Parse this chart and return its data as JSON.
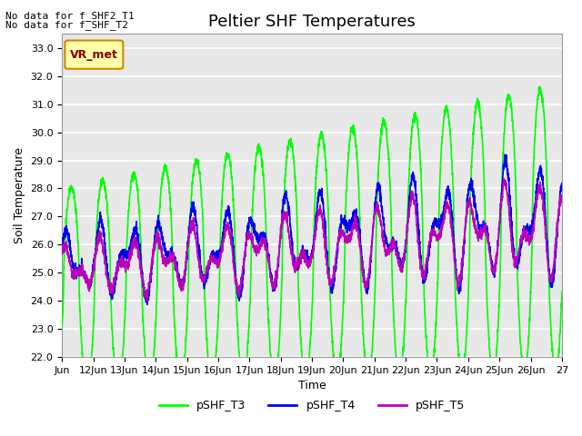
{
  "title": "Peltier SHF Temperatures",
  "xlabel": "Time",
  "ylabel": "Soil Temperature",
  "ylim": [
    22.0,
    33.5
  ],
  "yticks": [
    22.0,
    23.0,
    24.0,
    25.0,
    26.0,
    27.0,
    28.0,
    29.0,
    30.0,
    31.0,
    32.0,
    33.0
  ],
  "x_start": 11.0,
  "x_end": 27.0,
  "xtick_labels": [
    "Jun",
    "12Jun",
    "13Jun",
    "14Jun",
    "15Jun",
    "16Jun",
    "17Jun",
    "18Jun",
    "19Jun",
    "20Jun",
    "21Jun",
    "22Jun",
    "23Jun",
    "24Jun",
    "25Jun",
    "26Jun",
    "27"
  ],
  "xtick_positions": [
    11.0,
    12.0,
    13.0,
    14.0,
    15.0,
    16.0,
    17.0,
    18.0,
    19.0,
    20.0,
    21.0,
    22.0,
    23.0,
    24.0,
    25.0,
    26.0,
    27.0
  ],
  "series": {
    "pSHF_T3": {
      "color": "#00FF00",
      "linewidth": 1.2
    },
    "pSHF_T4": {
      "color": "#0000EE",
      "linewidth": 1.2
    },
    "pSHF_T5": {
      "color": "#BB00BB",
      "linewidth": 1.2
    }
  },
  "annotations": [
    "No data for f_SHF2_T1",
    "No data for f_SHF_T2"
  ],
  "legend_label": "VR_met",
  "legend_bg": "#FFFFAA",
  "legend_border": "#CC8800",
  "legend_text_color": "#880000",
  "bg_color": "#E8E8E8",
  "fig_bg": "#FFFFFF",
  "grid_color": "#FFFFFF",
  "title_fontsize": 13,
  "label_fontsize": 9,
  "tick_fontsize": 8
}
